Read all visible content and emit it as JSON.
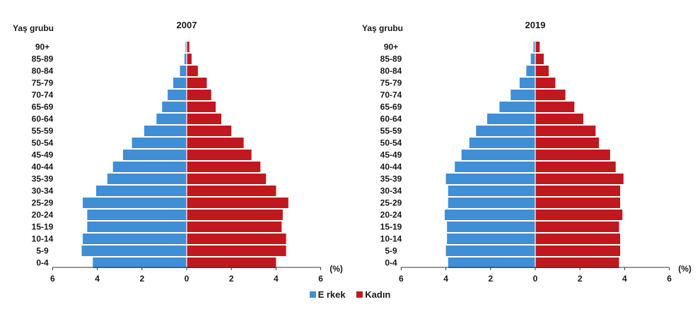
{
  "chart_data": [
    {
      "type": "bar",
      "title": "2007",
      "ylabel": "Yaş grubu",
      "xunit": "(%)",
      "xlim": [
        -6,
        6
      ],
      "xticks": [
        "6",
        "4",
        "2",
        "0",
        "2",
        "4",
        "6"
      ],
      "categories": [
        "90+",
        "85-89",
        "80-84",
        "75-79",
        "70-74",
        "65-69",
        "60-64",
        "55-59",
        "50-54",
        "45-49",
        "40-44",
        "35-39",
        "30-34",
        "25-29",
        "20-24",
        "15-19",
        "10-14",
        "5-9",
        "0-4"
      ],
      "series": [
        {
          "name": "Erkek",
          "values": [
            0.05,
            0.1,
            0.3,
            0.6,
            0.85,
            1.1,
            1.35,
            1.9,
            2.45,
            2.85,
            3.3,
            3.55,
            4.05,
            4.65,
            4.45,
            4.45,
            4.65,
            4.7,
            4.2
          ]
        },
        {
          "name": "Kadın",
          "values": [
            0.12,
            0.22,
            0.5,
            0.9,
            1.1,
            1.3,
            1.55,
            2.0,
            2.55,
            2.9,
            3.3,
            3.55,
            4.0,
            4.55,
            4.3,
            4.25,
            4.45,
            4.45,
            4.0
          ]
        }
      ]
    },
    {
      "type": "bar",
      "title": "2019",
      "ylabel": "Yaş grubu",
      "xunit": "(%)",
      "xlim": [
        -6,
        6
      ],
      "xticks": [
        "6",
        "4",
        "2",
        "0",
        "2",
        "4",
        "6"
      ],
      "categories": [
        "90+",
        "85-89",
        "80-84",
        "75-79",
        "70-74",
        "65-69",
        "60-64",
        "55-59",
        "50-54",
        "45-49",
        "40-44",
        "35-39",
        "30-34",
        "25-29",
        "20-24",
        "15-19",
        "10-14",
        "5-9",
        "0-4"
      ],
      "series": [
        {
          "name": "Erkek",
          "values": [
            0.08,
            0.2,
            0.4,
            0.7,
            1.1,
            1.6,
            2.15,
            2.65,
            2.95,
            3.3,
            3.6,
            4.0,
            3.9,
            3.9,
            4.05,
            3.95,
            3.95,
            4.0,
            3.9
          ]
        },
        {
          "name": "Kadın",
          "values": [
            0.2,
            0.38,
            0.6,
            0.9,
            1.35,
            1.75,
            2.15,
            2.7,
            2.85,
            3.35,
            3.6,
            3.95,
            3.8,
            3.8,
            3.9,
            3.75,
            3.8,
            3.8,
            3.75
          ]
        }
      ]
    }
  ],
  "legend": {
    "male": "E rkek",
    "female": "Kadın"
  },
  "colors": {
    "male": "#3f8fd6",
    "female": "#c0181e"
  }
}
